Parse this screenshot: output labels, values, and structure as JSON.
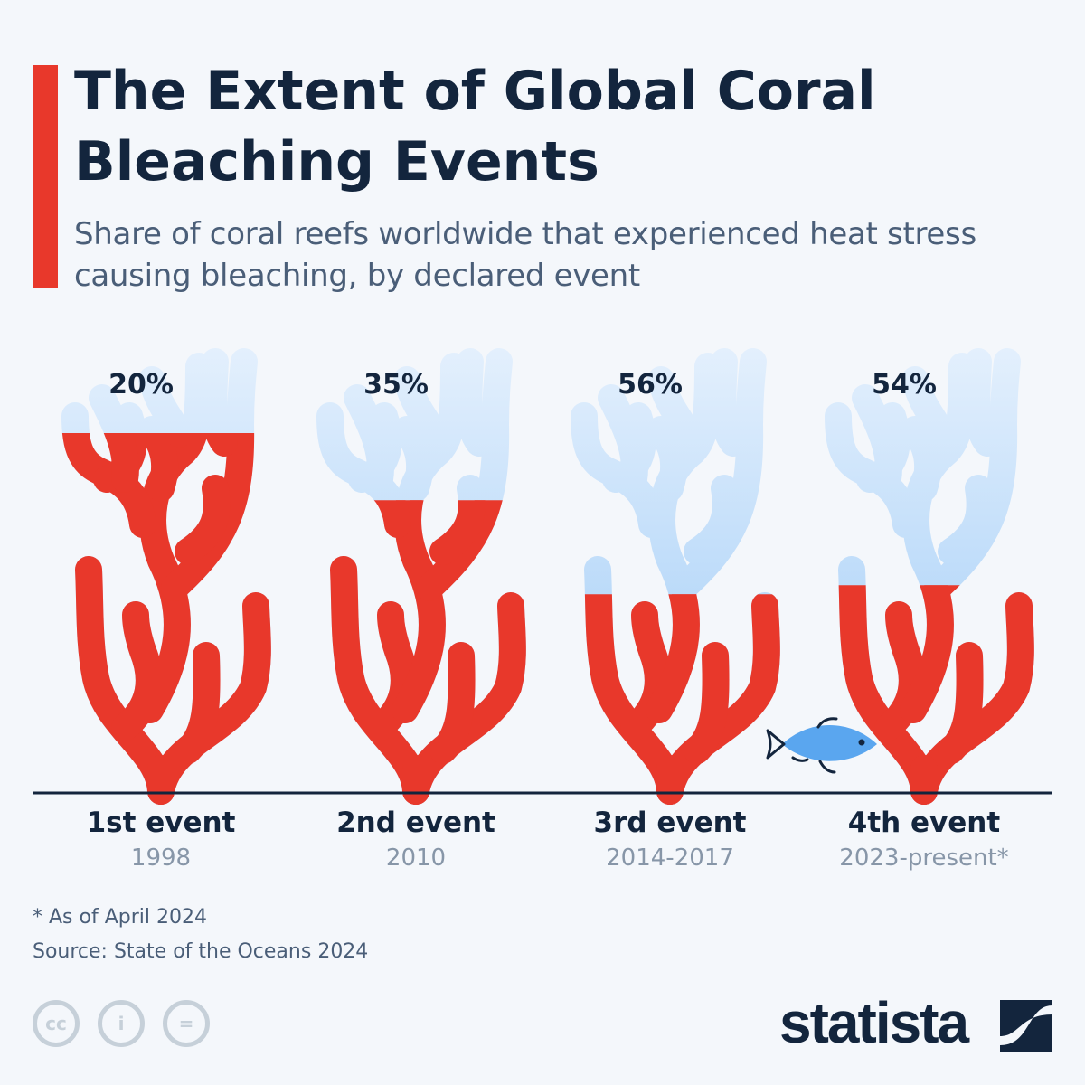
{
  "header": {
    "title": "The Extent of Global Coral Bleaching Events",
    "subtitle": "Share of coral reefs worldwide that experienced heat stress causing bleaching, by declared event"
  },
  "chart_data": {
    "type": "bar",
    "categories": [
      "1st event",
      "2nd event",
      "3rd event",
      "4th event"
    ],
    "sublabels": [
      "1998",
      "2010",
      "2014-2017",
      "2023-present*"
    ],
    "values": [
      20,
      35,
      56,
      54
    ],
    "value_labels": [
      "20%",
      "35%",
      "56%",
      "54%"
    ],
    "unit": "%",
    "ylim": [
      0,
      100
    ],
    "colors": {
      "healthy": "#e8382b",
      "bleached": "#b8d8f8",
      "bleached_top": "#e4f0fd",
      "axis": "#13253d"
    }
  },
  "footer": {
    "note": "* As of April 2024",
    "source": "Source: State of the Oceans 2024",
    "brand": "statista",
    "license_icons": [
      "cc-icon",
      "attribution-icon",
      "no-derivatives-icon"
    ]
  }
}
